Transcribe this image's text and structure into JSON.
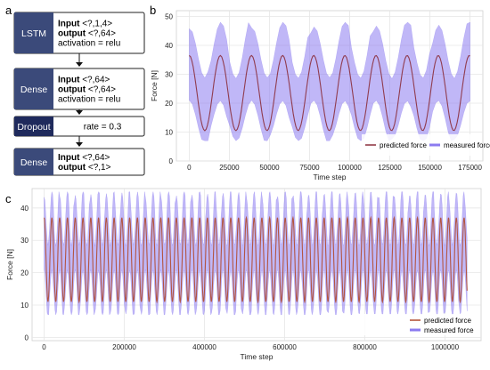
{
  "panel_labels": {
    "a": "a",
    "b": "b",
    "c": "c"
  },
  "architecture": {
    "layers": [
      {
        "name": "LSTM",
        "lines": [
          {
            "bold": "Input",
            "rest": " <?,1,4>"
          },
          {
            "bold": "output",
            "rest": " <?,64>"
          },
          {
            "bold": "",
            "rest": "activation = relu"
          }
        ]
      },
      {
        "name": "Dense",
        "lines": [
          {
            "bold": "Input",
            "rest": " <?,64>"
          },
          {
            "bold": "output",
            "rest": " <?,64>"
          },
          {
            "bold": "",
            "rest": "activation = relu"
          }
        ]
      },
      {
        "name": "Dropout",
        "lines": [
          {
            "bold": "",
            "rest": "rate = 0.3"
          }
        ]
      },
      {
        "name": "Dense",
        "lines": [
          {
            "bold": "Input",
            "rest": " <?,64>"
          },
          {
            "bold": "output",
            "rest": " <?,1>"
          }
        ]
      }
    ],
    "colors": {
      "lstm_dense": "#3b4a7a",
      "dropout": "#1f2a5c",
      "box_border": "#222222"
    }
  },
  "chart_data": [
    {
      "id": "b",
      "type": "line",
      "xlabel": "Time step",
      "ylabel": "Force [N]",
      "xlim": [
        -8000,
        183000
      ],
      "ylim": [
        0,
        52
      ],
      "xticks": [
        0,
        25000,
        50000,
        75000,
        100000,
        125000,
        150000,
        175000
      ],
      "yticks": [
        0,
        10,
        20,
        30,
        40,
        50
      ],
      "grid": true,
      "legend_position": "lower-right",
      "series": [
        {
          "name": "predicted force",
          "color": "#8b2f3c",
          "mean": 23.5,
          "amplitude": 13,
          "period": 19400,
          "phase": 0,
          "x_start": 0,
          "x_end": 175000
        },
        {
          "name": "measured force",
          "color": "#8c7cf0",
          "mean": 24.5,
          "band_low": 7,
          "band_high": 48,
          "period": 19400,
          "x_start": 0,
          "x_end": 175000
        }
      ]
    },
    {
      "id": "c",
      "type": "line",
      "xlabel": "Time step",
      "ylabel": "Force [N]",
      "xlim": [
        -30000,
        1090000
      ],
      "ylim": [
        -1,
        46
      ],
      "xticks": [
        0,
        200000,
        400000,
        600000,
        800000,
        1000000
      ],
      "yticks": [
        0,
        10,
        20,
        30,
        40
      ],
      "grid": true,
      "legend_position": "lower-right",
      "series": [
        {
          "name": "predicted force",
          "color": "#b04a2f",
          "mean": 24,
          "amplitude": 13,
          "period": 19400,
          "x_start": 0,
          "x_end": 1055000
        },
        {
          "name": "measured force",
          "color": "#8c7cf0",
          "mean": 24.5,
          "band_low": 7,
          "band_high": 45,
          "period": 19400,
          "x_start": 0,
          "x_end": 1055000
        }
      ]
    }
  ]
}
